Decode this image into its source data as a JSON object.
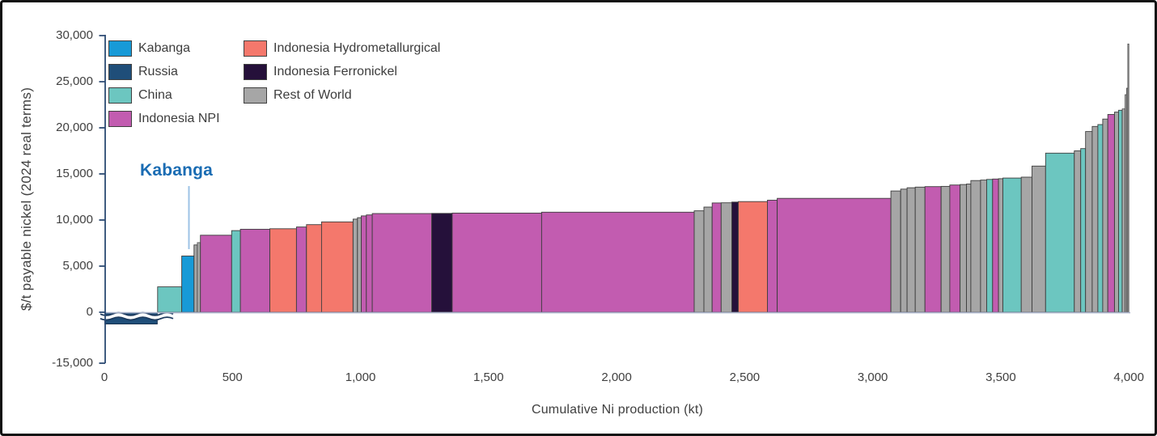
{
  "chart": {
    "y_axis": {
      "title": "$/t payable nickel (2024 real terms)",
      "ticks": [
        {
          "label": "30,000",
          "value": 30000
        },
        {
          "label": "25,000",
          "value": 25000
        },
        {
          "label": "20,000",
          "value": 20000
        },
        {
          "label": "15,000",
          "value": 15000
        },
        {
          "label": "10,000",
          "value": 10000
        },
        {
          "label": "5,000",
          "value": 5000
        },
        {
          "label": "0",
          "value": 0
        },
        {
          "label": "-15,000",
          "value": -15000
        }
      ]
    },
    "x_axis": {
      "title": "Cumulative Ni production (kt)",
      "ticks": [
        {
          "label": "0",
          "value": 0
        },
        {
          "label": "500",
          "value": 500
        },
        {
          "label": "1,000",
          "value": 1000
        },
        {
          "label": "1,500",
          "value": 1500
        },
        {
          "label": "2,000",
          "value": 2000
        },
        {
          "label": "2,500",
          "value": 2500
        },
        {
          "label": "3,000",
          "value": 3000
        },
        {
          "label": "3,500",
          "value": 3500
        },
        {
          "label": "4,000",
          "value": 4000
        }
      ]
    },
    "annotation": {
      "label": "Kabanga"
    },
    "legend": {
      "col1": [
        {
          "label": "Kabanga",
          "key": "kabanga",
          "color": "#179ad7"
        },
        {
          "label": "Russia",
          "key": "russia",
          "color": "#1f4e79"
        },
        {
          "label": "China",
          "key": "china",
          "color": "#6cc6c0"
        },
        {
          "label": "Indonesia NPI",
          "key": "npi",
          "color": "#c25cb0"
        }
      ],
      "col2": [
        {
          "label": "Indonesia Hydrometallurgical",
          "key": "hydro",
          "color": "#f4786c"
        },
        {
          "label": "Indonesia Ferronickel",
          "key": "ferro",
          "color": "#25103a"
        },
        {
          "label": "Rest of World",
          "key": "row",
          "color": "#a6a6a6"
        }
      ]
    },
    "colors": {
      "axis_line": "#2b4a72",
      "baseline": "#a9b2c9",
      "bar_outline": "#3d3d3d",
      "leader_line": "#9dc3e6",
      "annotation_text": "#1a6cb3",
      "tick_text": "#404040"
    }
  },
  "chart_data": {
    "type": "bar",
    "variant": "cost-curve-variable-width",
    "title": "",
    "xlabel": "Cumulative Ni production (kt)",
    "ylabel": "$/t payable nickel (2024 real terms)",
    "xlim": [
      0,
      4000
    ],
    "ylim": [
      -15000,
      30000
    ],
    "y_axis_break": {
      "between": [
        0,
        -15000
      ],
      "note": "wavy break marks on negative-cost bar"
    },
    "grid": false,
    "legend_position": "top-left",
    "annotation": {
      "label": "Kabanga",
      "points_to_kt": 330
    },
    "category_colors": {
      "kabanga": "#179ad7",
      "russia": "#1f4e79",
      "china": "#6cc6c0",
      "npi": "#c25cb0",
      "hydro": "#f4786c",
      "ferro": "#25103a",
      "row": "#a6a6a6"
    },
    "bars_columns": [
      "end_kt",
      "cost_usd_per_t",
      "category"
    ],
    "bars_note": "each bar starts where previous ends (first starts at 0 kt); russia bar is negative cost drawn with axis break",
    "bars": [
      [
        208,
        -13500,
        "russia"
      ],
      [
        302,
        2750,
        "china"
      ],
      [
        350,
        6100,
        "kabanga"
      ],
      [
        363,
        7300,
        "row"
      ],
      [
        375,
        7550,
        "row"
      ],
      [
        497,
        8350,
        "npi"
      ],
      [
        531,
        8850,
        "china"
      ],
      [
        646,
        9000,
        "npi"
      ],
      [
        750,
        9050,
        "hydro"
      ],
      [
        789,
        9250,
        "npi"
      ],
      [
        848,
        9500,
        "hydro"
      ],
      [
        971,
        9800,
        "hydro"
      ],
      [
        988,
        10100,
        "row"
      ],
      [
        1003,
        10250,
        "row"
      ],
      [
        1023,
        10450,
        "npi"
      ],
      [
        1046,
        10550,
        "npi"
      ],
      [
        1278,
        10700,
        "npi"
      ],
      [
        1358,
        10720,
        "ferro"
      ],
      [
        1707,
        10750,
        "npi"
      ],
      [
        2303,
        10850,
        "npi"
      ],
      [
        2341,
        11000,
        "row"
      ],
      [
        2373,
        11400,
        "row"
      ],
      [
        2408,
        11850,
        "npi"
      ],
      [
        2450,
        11870,
        "row"
      ],
      [
        2475,
        11950,
        "ferro"
      ],
      [
        2589,
        12000,
        "hydro"
      ],
      [
        2627,
        12150,
        "npi"
      ],
      [
        3071,
        12350,
        "npi"
      ],
      [
        3109,
        13150,
        "row"
      ],
      [
        3134,
        13350,
        "row"
      ],
      [
        3166,
        13500,
        "row"
      ],
      [
        3204,
        13570,
        "row"
      ],
      [
        3267,
        13620,
        "npi"
      ],
      [
        3301,
        13650,
        "row"
      ],
      [
        3341,
        13800,
        "npi"
      ],
      [
        3366,
        13850,
        "row"
      ],
      [
        3383,
        13900,
        "row"
      ],
      [
        3421,
        14280,
        "row"
      ],
      [
        3445,
        14330,
        "row"
      ],
      [
        3468,
        14400,
        "china"
      ],
      [
        3491,
        14450,
        "npi"
      ],
      [
        3508,
        14480,
        "row"
      ],
      [
        3580,
        14550,
        "china"
      ],
      [
        3622,
        14650,
        "row"
      ],
      [
        3675,
        15850,
        "row"
      ],
      [
        3787,
        17250,
        "china"
      ],
      [
        3812,
        17500,
        "row"
      ],
      [
        3831,
        17750,
        "china"
      ],
      [
        3857,
        19600,
        "row"
      ],
      [
        3879,
        20150,
        "row"
      ],
      [
        3898,
        20350,
        "china"
      ],
      [
        3918,
        20950,
        "row"
      ],
      [
        3944,
        21450,
        "npi"
      ],
      [
        3960,
        21700,
        "row"
      ],
      [
        3974,
        21900,
        "china"
      ],
      [
        3985,
        22050,
        "row"
      ],
      [
        3991,
        23600,
        "row"
      ],
      [
        3996,
        24300,
        "row"
      ],
      [
        4000,
        29100,
        "row"
      ]
    ]
  }
}
